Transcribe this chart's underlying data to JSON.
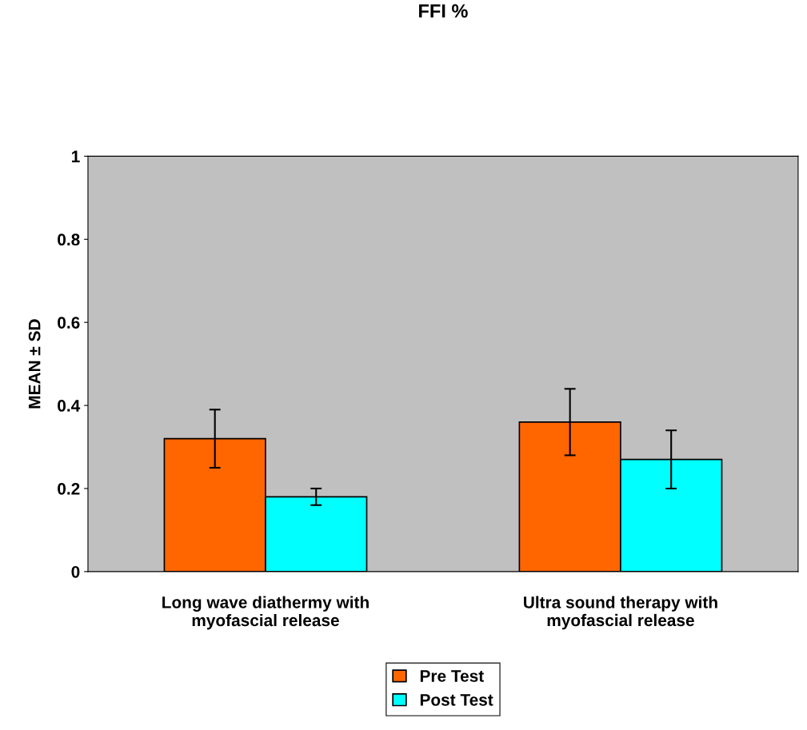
{
  "chart_data": {
    "type": "bar",
    "title": "FFI %",
    "ylabel": "MEAN ± SD",
    "categories": [
      "Long wave diathermy with\nmyofascial release",
      "Ultra sound therapy with\nmyofascial release"
    ],
    "series": [
      {
        "name": "Pre Test",
        "color": "#ff6600",
        "values": [
          0.32,
          0.36
        ],
        "errors": [
          0.07,
          0.08
        ]
      },
      {
        "name": "Post Test",
        "color": "#00ffff",
        "values": [
          0.18,
          0.27
        ],
        "errors": [
          0.02,
          0.07
        ]
      }
    ],
    "ylim": [
      0,
      1
    ],
    "yticks": [
      0,
      0.2,
      0.4,
      0.6,
      0.8,
      1
    ],
    "grid": false,
    "legend": "bottom"
  }
}
